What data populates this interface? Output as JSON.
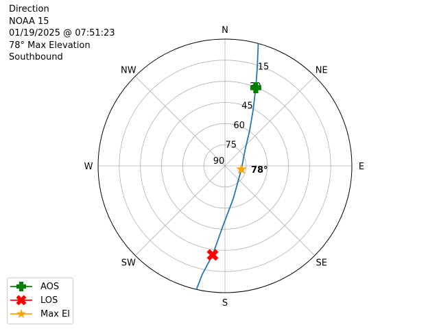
{
  "title_lines": [
    "Direction",
    "NOAA 15",
    "01/19/2025 @ 07:51:23",
    "78° Max Elevation",
    "Southbound"
  ],
  "chart_data": {
    "type": "polar",
    "direction_labels": [
      {
        "label": "N",
        "az": 0
      },
      {
        "label": "NE",
        "az": 45
      },
      {
        "label": "E",
        "az": 90
      },
      {
        "label": "SE",
        "az": 135
      },
      {
        "label": "S",
        "az": 180
      },
      {
        "label": "SW",
        "az": 225
      },
      {
        "label": "W",
        "az": 270
      },
      {
        "label": "NW",
        "az": 315
      }
    ],
    "radial_ticks": [
      15,
      30,
      45,
      60,
      75,
      90
    ],
    "radial_range": [
      90,
      0
    ],
    "grid": true,
    "track": {
      "color": "#1f77b4",
      "points": [
        [
          15.2,
          0
        ],
        [
          18.3,
          17.2
        ],
        [
          21.5,
          30.4
        ],
        [
          26.6,
          45.4
        ],
        [
          34.7,
          59.2
        ],
        [
          52.8,
          72.3
        ],
        [
          101.8,
          78.1
        ],
        [
          166.0,
          65.9
        ],
        [
          182.0,
          47.2
        ],
        [
          187.9,
          26.2
        ],
        [
          191.8,
          11.5
        ],
        [
          193.0,
          0
        ]
      ]
    },
    "markers": [
      {
        "name": "AOS",
        "az": 21.5,
        "el": 30.4,
        "color": "#008000",
        "shape": "plus"
      },
      {
        "name": "LOS",
        "az": 187.9,
        "el": 26.2,
        "color": "#ff0000",
        "shape": "x"
      },
      {
        "name": "Max El",
        "az": 101.8,
        "el": 78.1,
        "color": "#ffa500",
        "shape": "star"
      }
    ],
    "annotation": "78°",
    "legend_position": "bottom-left"
  }
}
